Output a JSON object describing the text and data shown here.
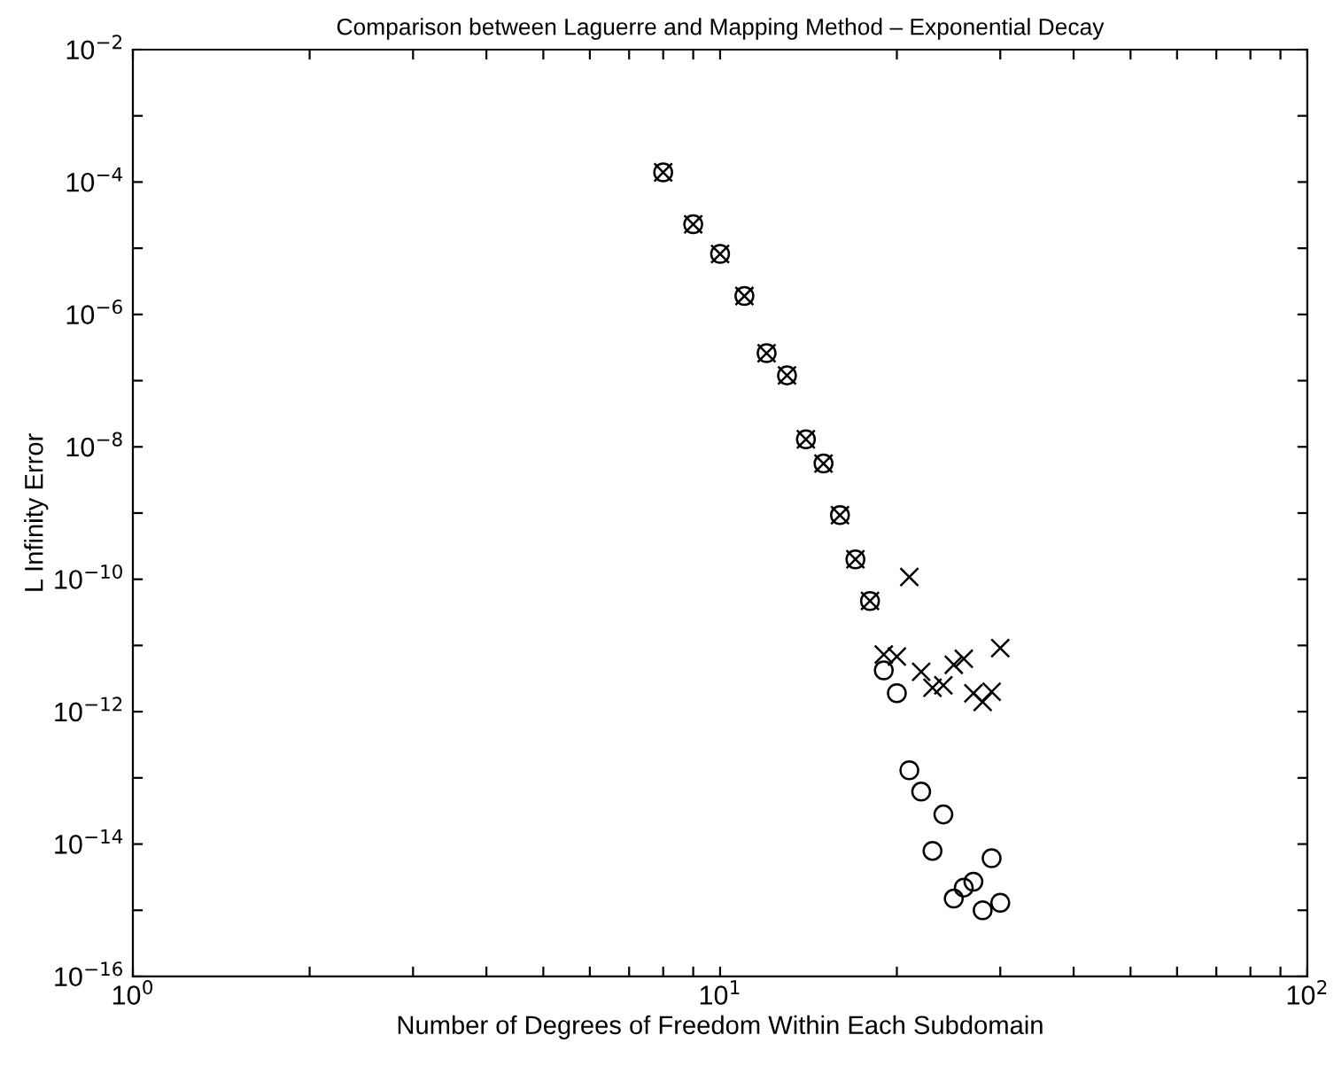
{
  "chart_data": {
    "type": "scatter",
    "title": "Comparison between Laguerre and Mapping Method – Exponential Decay",
    "xlabel": "Number of Degrees of Freedom Within Each Subdomain",
    "ylabel": "L Infinity Error",
    "log": "xy",
    "grid": false,
    "legend": false,
    "xlim": [
      1,
      100
    ],
    "ylim": [
      1e-16,
      0.01
    ],
    "xticks": [
      {
        "value": 1,
        "label": "10$^{0}$"
      },
      {
        "value": 2,
        "label": null
      },
      {
        "value": 3,
        "label": null
      },
      {
        "value": 4,
        "label": null
      },
      {
        "value": 5,
        "label": null
      },
      {
        "value": 6,
        "label": null
      },
      {
        "value": 7,
        "label": null
      },
      {
        "value": 8,
        "label": null
      },
      {
        "value": 9,
        "label": null
      },
      {
        "value": 10,
        "label": "10$^{1}$"
      },
      {
        "value": 20,
        "label": null
      },
      {
        "value": 30,
        "label": null
      },
      {
        "value": 40,
        "label": null
      },
      {
        "value": 50,
        "label": null
      },
      {
        "value": 60,
        "label": null
      },
      {
        "value": 70,
        "label": null
      },
      {
        "value": 80,
        "label": null
      },
      {
        "value": 90,
        "label": null
      },
      {
        "value": 100,
        "label": "10$^{2}$"
      }
    ],
    "yticks": [
      {
        "value": 1e-16,
        "label": "10$^{−16}$"
      },
      {
        "value": 1e-15,
        "label": null
      },
      {
        "value": 1e-14,
        "label": "10$^{−14}$"
      },
      {
        "value": 1e-13,
        "label": null
      },
      {
        "value": 1e-12,
        "label": "10$^{−12}$"
      },
      {
        "value": 1e-11,
        "label": null
      },
      {
        "value": 1e-10,
        "label": "10$^{−10}$"
      },
      {
        "value": 1e-09,
        "label": null
      },
      {
        "value": 1e-08,
        "label": "10$^{−8}$"
      },
      {
        "value": 1e-07,
        "label": null
      },
      {
        "value": 1e-06,
        "label": "10$^{−6}$"
      },
      {
        "value": 1e-05,
        "label": null
      },
      {
        "value": 0.0001,
        "label": "10$^{−4}$"
      },
      {
        "value": 0.001,
        "label": null
      },
      {
        "value": 0.01,
        "label": "10$^{−2}$"
      }
    ],
    "series": [
      {
        "color": "#000000",
        "marker": "circle",
        "x": [
          8,
          9,
          10,
          11,
          12,
          13,
          14,
          15,
          16,
          17,
          18,
          19,
          20,
          21,
          22,
          23,
          24,
          25,
          26,
          27,
          28,
          29,
          30
        ],
        "values": [
          0.00014,
          2.3e-05,
          8.2e-06,
          1.9e-06,
          2.6e-07,
          1.2e-07,
          1.3e-08,
          5.6e-09,
          9.3e-10,
          2e-10,
          4.7e-11,
          4.2e-12,
          1.9e-12,
          1.3e-13,
          6.2e-14,
          7.9e-15,
          2.8e-14,
          1.5e-15,
          2.2e-15,
          2.7e-15,
          1e-15,
          6.1e-15,
          1.3e-15
        ]
      },
      {
        "color": "#000000",
        "marker": "cross",
        "x": [
          8,
          9,
          10,
          11,
          12,
          13,
          14,
          15,
          16,
          17,
          18,
          19,
          20,
          21,
          22,
          23,
          24,
          25,
          26,
          27,
          28,
          29,
          30
        ],
        "values": [
          0.00014,
          2.3e-05,
          8.2e-06,
          1.9e-06,
          2.6e-07,
          1.2e-07,
          1.3e-08,
          5.6e-09,
          9.3e-10,
          2e-10,
          4.7e-11,
          7.3e-12,
          6.8e-12,
          1.08e-10,
          4e-12,
          2.3e-12,
          2.5e-12,
          5.1e-12,
          6.3e-12,
          1.9e-12,
          1.4e-12,
          2e-12,
          9.1e-12
        ]
      }
    ]
  }
}
